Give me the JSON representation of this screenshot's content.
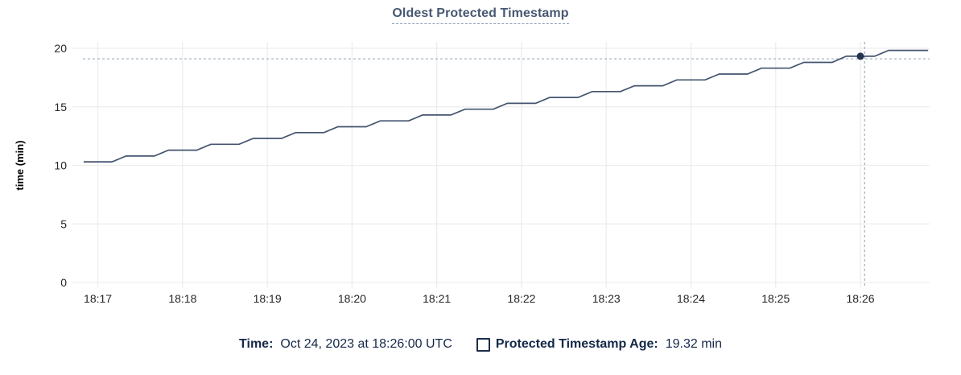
{
  "header": {
    "title": "Oldest Protected Timestamp"
  },
  "chart_data": {
    "type": "line",
    "title": "Oldest Protected Timestamp",
    "xlabel": "",
    "ylabel": "time (min)",
    "ylim": [
      0,
      20
    ],
    "yticks": [
      0,
      5,
      10,
      15,
      20
    ],
    "x_unit": "seconds relative to 18:17:00",
    "xlim": [
      -18,
      589
    ],
    "grid": true,
    "legend_position": "bottom",
    "xticks": [
      {
        "t": 0,
        "label": "18:17"
      },
      {
        "t": 60,
        "label": "18:18"
      },
      {
        "t": 120,
        "label": "18:19"
      },
      {
        "t": 180,
        "label": "18:20"
      },
      {
        "t": 240,
        "label": "18:21"
      },
      {
        "t": 300,
        "label": "18:22"
      },
      {
        "t": 360,
        "label": "18:23"
      },
      {
        "t": 420,
        "label": "18:24"
      },
      {
        "t": 480,
        "label": "18:25"
      },
      {
        "t": 540,
        "label": "18:26"
      }
    ],
    "series": [
      {
        "name": "Protected Timestamp Age",
        "unit": "min",
        "points": [
          [
            -10,
            10.3
          ],
          [
            0,
            10.3
          ],
          [
            10,
            10.3
          ],
          [
            20,
            10.8
          ],
          [
            30,
            10.8
          ],
          [
            40,
            10.8
          ],
          [
            50,
            11.3
          ],
          [
            60,
            11.3
          ],
          [
            70,
            11.3
          ],
          [
            80,
            11.8
          ],
          [
            90,
            11.8
          ],
          [
            100,
            11.8
          ],
          [
            110,
            12.3
          ],
          [
            120,
            12.3
          ],
          [
            130,
            12.3
          ],
          [
            140,
            12.8
          ],
          [
            150,
            12.8
          ],
          [
            160,
            12.8
          ],
          [
            170,
            13.3
          ],
          [
            180,
            13.3
          ],
          [
            190,
            13.3
          ],
          [
            200,
            13.8
          ],
          [
            210,
            13.8
          ],
          [
            220,
            13.8
          ],
          [
            230,
            14.3
          ],
          [
            240,
            14.3
          ],
          [
            250,
            14.3
          ],
          [
            260,
            14.8
          ],
          [
            270,
            14.8
          ],
          [
            280,
            14.8
          ],
          [
            290,
            15.3
          ],
          [
            300,
            15.3
          ],
          [
            310,
            15.3
          ],
          [
            320,
            15.8
          ],
          [
            330,
            15.8
          ],
          [
            340,
            15.8
          ],
          [
            350,
            16.3
          ],
          [
            360,
            16.3
          ],
          [
            370,
            16.3
          ],
          [
            380,
            16.8
          ],
          [
            390,
            16.8
          ],
          [
            400,
            16.8
          ],
          [
            410,
            17.3
          ],
          [
            420,
            17.3
          ],
          [
            430,
            17.3
          ],
          [
            440,
            17.8
          ],
          [
            450,
            17.8
          ],
          [
            460,
            17.8
          ],
          [
            470,
            18.3
          ],
          [
            480,
            18.3
          ],
          [
            490,
            18.3
          ],
          [
            500,
            18.8
          ],
          [
            510,
            18.8
          ],
          [
            520,
            18.8
          ],
          [
            530,
            19.32
          ],
          [
            540,
            19.32
          ],
          [
            550,
            19.32
          ],
          [
            560,
            19.82
          ],
          [
            588,
            19.82
          ]
        ]
      }
    ],
    "hover": {
      "point": {
        "t": 540,
        "value": 19.32,
        "time_label": "Oct 24, 2023 at 18:26:00 UTC"
      },
      "crosshair": {
        "t": 543,
        "value": 19.1
      }
    }
  },
  "legend": {
    "time_label": "Time:",
    "time_value": "Oct 24, 2023 at 18:26:00 UTC",
    "series_label": "Protected Timestamp Age:",
    "series_value": "19.32 min"
  },
  "colors": {
    "title": "#475872",
    "navy_text": "#152849",
    "line": "#44536e",
    "dot": "#26334d",
    "grid": "#ededed",
    "crosshair": "#a3b5c4",
    "tick_text": "#262626",
    "axis_label": "#000000"
  }
}
